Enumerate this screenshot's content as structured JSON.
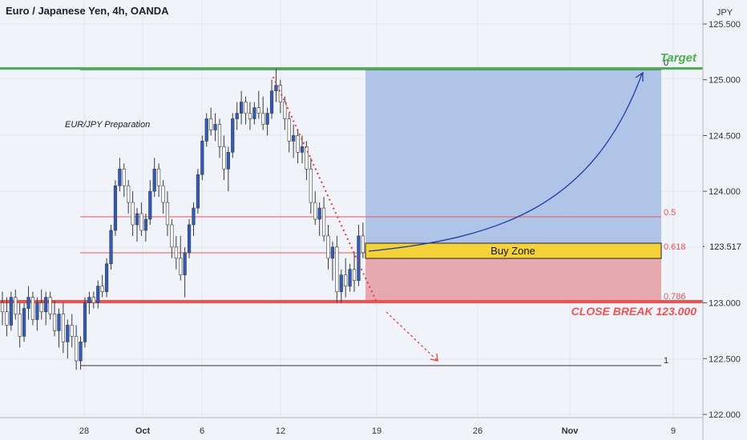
{
  "header": {
    "title": "Euro / Japanese Yen, 4h, OANDA"
  },
  "note": "EUR/JPY Preparation",
  "colors": {
    "bull": "#2f5bbd",
    "bear": "#ffffff",
    "candle_border": "#3a3a3a",
    "target": "#4caf50",
    "break": "#ef5350",
    "fib": "#ef5350",
    "reward_zone": "#a9bfe4",
    "risk_zone": "#e5a1a7",
    "buy_zone": "#f5d23a",
    "path": "#1f3fa8"
  },
  "price_axis": {
    "unit": "JPY",
    "ticks": [
      "125.500",
      "125.000",
      "124.500",
      "124.000",
      "123.000",
      "122.500",
      "122.000"
    ],
    "current_price": "123.517"
  },
  "time_axis": {
    "ticks": [
      {
        "label": "28",
        "bold": false
      },
      {
        "label": "Oct",
        "bold": true
      },
      {
        "label": "6",
        "bold": false
      },
      {
        "label": "12",
        "bold": false
      },
      {
        "label": "19",
        "bold": false
      },
      {
        "label": "26",
        "bold": false
      },
      {
        "label": "Nov",
        "bold": true
      },
      {
        "label": "9",
        "bold": false
      }
    ]
  },
  "fib_labels": {
    "f0": "0",
    "f05": "0.5",
    "f0618": "0.618",
    "f0786": "0.786",
    "f1": "1"
  },
  "annotations": {
    "target": "Target",
    "buy_zone": "Buy Zone",
    "close_break": "CLOSE BREAK 123.000"
  },
  "chart_data": {
    "type": "candlestick",
    "title": "Euro / Japanese Yen, 4h, OANDA",
    "ylabel": "JPY",
    "ylim": [
      121.95,
      125.65
    ],
    "levels": {
      "target": 125.08,
      "fib_0": 125.08,
      "fib_0_5": 123.77,
      "fib_0_618": 123.45,
      "fib_0_786": 123.0,
      "fib_1": 122.42,
      "close_break": 123.0,
      "current": 123.517
    },
    "buy_zone": [
      123.38,
      123.53
    ],
    "series": [
      {
        "values": [
          [
            123.0,
            123.1,
            122.8,
            122.92
          ],
          [
            122.92,
            123.05,
            122.7,
            122.8
          ],
          [
            122.8,
            123.1,
            122.75,
            123.05
          ],
          [
            123.05,
            123.12,
            122.85,
            122.9
          ],
          [
            122.9,
            123.0,
            122.6,
            122.7
          ],
          [
            122.7,
            123.0,
            122.65,
            122.95
          ],
          [
            122.95,
            123.15,
            122.85,
            123.05
          ],
          [
            123.05,
            123.1,
            122.8,
            122.85
          ],
          [
            122.85,
            123.05,
            122.75,
            123.0
          ],
          [
            123.0,
            123.12,
            122.85,
            122.92
          ],
          [
            122.92,
            123.1,
            122.8,
            123.05
          ],
          [
            123.05,
            123.1,
            122.85,
            122.9
          ],
          [
            122.9,
            123.02,
            122.7,
            122.75
          ],
          [
            122.75,
            122.95,
            122.6,
            122.9
          ],
          [
            122.9,
            123.0,
            122.55,
            122.65
          ],
          [
            122.65,
            122.85,
            122.5,
            122.8
          ],
          [
            122.8,
            122.9,
            122.6,
            122.7
          ],
          [
            122.7,
            122.8,
            122.4,
            122.48
          ],
          [
            122.48,
            122.7,
            122.4,
            122.65
          ],
          [
            122.65,
            123.05,
            122.6,
            123.0
          ],
          [
            123.0,
            123.1,
            122.9,
            123.05
          ],
          [
            123.05,
            123.1,
            122.95,
            123.0
          ],
          [
            123.0,
            123.2,
            122.95,
            123.15
          ],
          [
            123.15,
            123.25,
            123.05,
            123.1
          ],
          [
            123.1,
            123.4,
            123.05,
            123.35
          ],
          [
            123.35,
            123.7,
            123.3,
            123.65
          ],
          [
            123.65,
            124.1,
            123.6,
            124.05
          ],
          [
            124.05,
            124.3,
            124.0,
            124.2
          ],
          [
            124.2,
            124.25,
            123.95,
            124.05
          ],
          [
            124.05,
            124.1,
            123.8,
            123.9
          ],
          [
            123.9,
            124.0,
            123.6,
            123.7
          ],
          [
            123.7,
            123.85,
            123.55,
            123.8
          ],
          [
            123.8,
            123.9,
            123.6,
            123.65
          ],
          [
            123.65,
            123.8,
            123.55,
            123.75
          ],
          [
            123.75,
            124.1,
            123.7,
            124.0
          ],
          [
            124.0,
            124.3,
            123.95,
            124.2
          ],
          [
            124.2,
            124.25,
            123.95,
            124.05
          ],
          [
            124.05,
            124.1,
            123.8,
            123.9
          ],
          [
            123.9,
            124.0,
            123.6,
            123.7
          ],
          [
            123.7,
            123.75,
            123.4,
            123.5
          ],
          [
            123.5,
            123.6,
            123.3,
            123.4
          ],
          [
            123.4,
            123.6,
            123.2,
            123.25
          ],
          [
            123.25,
            123.5,
            123.05,
            123.45
          ],
          [
            123.45,
            123.75,
            123.4,
            123.7
          ],
          [
            123.7,
            123.9,
            123.6,
            123.85
          ],
          [
            123.85,
            124.2,
            123.8,
            124.15
          ],
          [
            124.15,
            124.5,
            124.1,
            124.45
          ],
          [
            124.45,
            124.7,
            124.4,
            124.65
          ],
          [
            124.65,
            124.75,
            124.5,
            124.55
          ],
          [
            124.55,
            124.7,
            124.45,
            124.6
          ],
          [
            124.6,
            124.65,
            124.3,
            124.4
          ],
          [
            124.4,
            124.5,
            124.1,
            124.2
          ],
          [
            124.2,
            124.4,
            124.0,
            124.35
          ],
          [
            124.35,
            124.7,
            124.3,
            124.65
          ],
          [
            124.65,
            124.8,
            124.55,
            124.7
          ],
          [
            124.7,
            124.9,
            124.6,
            124.8
          ],
          [
            124.8,
            124.85,
            124.6,
            124.7
          ],
          [
            124.7,
            124.8,
            124.55,
            124.65
          ],
          [
            124.65,
            124.8,
            124.6,
            124.75
          ],
          [
            124.75,
            124.9,
            124.65,
            124.7
          ],
          [
            124.7,
            124.85,
            124.55,
            124.6
          ],
          [
            124.6,
            124.75,
            124.5,
            124.7
          ],
          [
            124.7,
            125.0,
            124.65,
            124.9
          ],
          [
            124.9,
            125.1,
            124.8,
            124.95
          ],
          [
            124.95,
            125.0,
            124.7,
            124.8
          ],
          [
            124.8,
            124.85,
            124.55,
            124.65
          ],
          [
            124.65,
            124.7,
            124.35,
            124.45
          ],
          [
            124.45,
            124.6,
            124.3,
            124.5
          ],
          [
            124.5,
            124.55,
            124.25,
            124.35
          ],
          [
            124.35,
            124.5,
            124.25,
            124.4
          ],
          [
            124.4,
            124.45,
            124.1,
            124.2
          ],
          [
            124.2,
            124.3,
            123.8,
            123.9
          ],
          [
            123.9,
            124.0,
            123.7,
            123.75
          ],
          [
            123.75,
            123.9,
            123.6,
            123.85
          ],
          [
            123.85,
            123.95,
            123.55,
            123.6
          ],
          [
            123.6,
            123.7,
            123.3,
            123.4
          ],
          [
            123.4,
            123.55,
            123.2,
            123.5
          ],
          [
            123.5,
            123.6,
            123.0,
            123.1
          ],
          [
            123.1,
            123.3,
            123.0,
            123.25
          ],
          [
            123.25,
            123.4,
            123.05,
            123.15
          ],
          [
            123.15,
            123.35,
            123.1,
            123.3
          ],
          [
            123.3,
            123.45,
            123.1,
            123.2
          ],
          [
            123.2,
            123.7,
            123.15,
            123.6
          ],
          [
            123.6,
            123.72,
            123.4,
            123.45
          ]
        ]
      }
    ]
  }
}
